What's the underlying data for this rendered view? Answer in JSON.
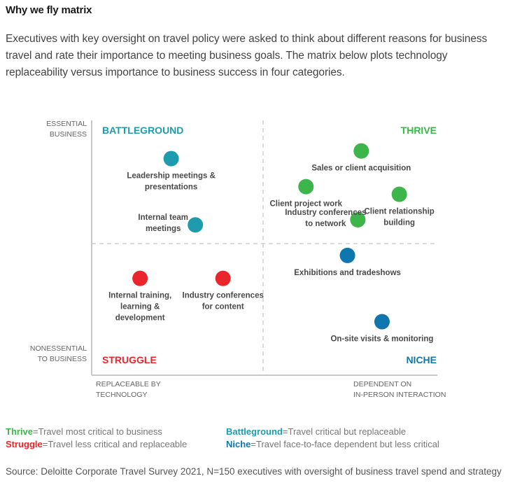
{
  "header": {
    "title": "Why we fly matrix",
    "intro": "Executives with key oversight on travel policy were asked to think about different reasons for business travel and rate their importance to meeting business goals. The matrix below plots technology replaceability versus importance to business success in four categories."
  },
  "chart_data": {
    "type": "scatter",
    "title": "Why we fly matrix",
    "xlabel_low": "REPLACEABLE BY TECHNOLOGY",
    "xlabel_high": "DEPENDENT ON IN-PERSON INTERACTION",
    "ylabel_high": "ESSENTIAL BUSINESS",
    "ylabel_low": "NONESSENTIAL TO BUSINESS",
    "xlim": [
      0,
      1
    ],
    "ylim": [
      0,
      1
    ],
    "grid": "quadrant-dividers",
    "quadrants": [
      {
        "name": "BATTLEGROUND",
        "position": "top-left",
        "color": "#1f9bae"
      },
      {
        "name": "THRIVE",
        "position": "top-right",
        "color": "#3cb54a"
      },
      {
        "name": "STRUGGLE",
        "position": "bottom-left",
        "color": "#e8262b"
      },
      {
        "name": "NICHE",
        "position": "bottom-right",
        "color": "#0f76ae"
      }
    ],
    "points": [
      {
        "label": [
          "Leadership meetings &",
          "presentations"
        ],
        "x": 0.23,
        "y": 0.85,
        "quadrant": "BATTLEGROUND",
        "label_pos": "below"
      },
      {
        "label": [
          "Internal team",
          "meetings"
        ],
        "x": 0.3,
        "y": 0.59,
        "quadrant": "BATTLEGROUND",
        "label_pos": "left"
      },
      {
        "label": [
          "Sales or client acquisition"
        ],
        "x": 0.78,
        "y": 0.88,
        "quadrant": "THRIVE",
        "label_pos": "below"
      },
      {
        "label": [
          "Client project work"
        ],
        "x": 0.62,
        "y": 0.74,
        "quadrant": "THRIVE",
        "label_pos": "below"
      },
      {
        "label": [
          "Client relationship",
          "building"
        ],
        "x": 0.89,
        "y": 0.71,
        "quadrant": "THRIVE",
        "label_pos": "below"
      },
      {
        "label": [
          "Industry conferences",
          "to network"
        ],
        "x": 0.77,
        "y": 0.61,
        "quadrant": "THRIVE",
        "label_pos": "left"
      },
      {
        "label": [
          "Exhibitions and tradeshows"
        ],
        "x": 0.74,
        "y": 0.47,
        "quadrant": "NICHE",
        "label_pos": "below"
      },
      {
        "label": [
          "On-site visits & monitoring"
        ],
        "x": 0.84,
        "y": 0.21,
        "quadrant": "NICHE",
        "label_pos": "below"
      },
      {
        "label": [
          "Internal training,",
          "learning &",
          "development"
        ],
        "x": 0.14,
        "y": 0.38,
        "quadrant": "STRUGGLE",
        "label_pos": "below"
      },
      {
        "label": [
          "Industry conferences",
          "for content"
        ],
        "x": 0.38,
        "y": 0.38,
        "quadrant": "STRUGGLE",
        "label_pos": "below"
      }
    ]
  },
  "legend": {
    "items": [
      {
        "term": "Thrive",
        "desc": "=Travel most critical to business",
        "color": "#3cb54a"
      },
      {
        "term": "Battleground",
        "desc": "=Travel critical but replaceable",
        "color": "#1f9bae"
      },
      {
        "term": "Struggle",
        "desc": "=Travel less critical and replaceable",
        "color": "#e8262b"
      },
      {
        "term": "Niche",
        "desc": "=Travel face-to-face dependent but less critical",
        "color": "#0f76ae"
      }
    ]
  },
  "source": "Source: Deloitte Corporate Travel Survey 2021, N=150 executives with oversight of business travel spend and strategy"
}
